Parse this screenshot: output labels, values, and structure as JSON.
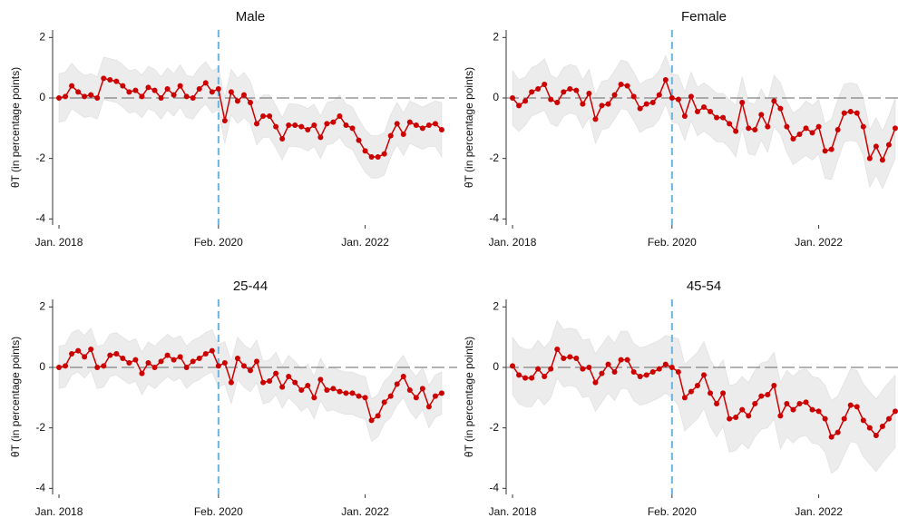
{
  "chart_data": [
    {
      "type": "line",
      "title": "Male",
      "ylabel": "θT (in percentage points)",
      "x": [
        "2018-01",
        "2018-02",
        "2018-03",
        "2018-04",
        "2018-05",
        "2018-06",
        "2018-07",
        "2018-08",
        "2018-09",
        "2018-10",
        "2018-11",
        "2018-12",
        "2019-01",
        "2019-02",
        "2019-03",
        "2019-04",
        "2019-05",
        "2019-06",
        "2019-07",
        "2019-08",
        "2019-09",
        "2019-10",
        "2019-11",
        "2019-12",
        "2020-01",
        "2020-02",
        "2020-03",
        "2020-04",
        "2020-05",
        "2020-06",
        "2020-07",
        "2020-08",
        "2020-09",
        "2020-10",
        "2020-11",
        "2020-12",
        "2021-01",
        "2021-02",
        "2021-03",
        "2021-04",
        "2021-05",
        "2021-06",
        "2021-07",
        "2021-08",
        "2021-09",
        "2021-10",
        "2021-11",
        "2021-12",
        "2022-01",
        "2022-02",
        "2022-03",
        "2022-04",
        "2022-05",
        "2022-06",
        "2022-07",
        "2022-08",
        "2022-09",
        "2022-10",
        "2022-11",
        "2022-12",
        "2023-01"
      ],
      "values": [
        0,
        0.05,
        0.4,
        0.2,
        0.05,
        0.1,
        0,
        0.65,
        0.6,
        0.55,
        0.4,
        0.2,
        0.25,
        0.05,
        0.35,
        0.25,
        0,
        0.3,
        0.1,
        0.4,
        0.05,
        0,
        0.3,
        0.5,
        0.2,
        0.3,
        -0.75,
        0.2,
        -0.1,
        0.1,
        -0.15,
        -0.85,
        -0.6,
        -0.6,
        -0.95,
        -1.35,
        -0.9,
        -0.9,
        -0.95,
        -1.05,
        -0.9,
        -1.3,
        -0.85,
        -0.8,
        -0.6,
        -0.9,
        -1.0,
        -1.4,
        -1.75,
        -1.95,
        -1.95,
        -1.85,
        -1.25,
        -0.85,
        -1.2,
        -0.8,
        -0.9,
        -1.0,
        -0.9,
        -0.85,
        -1.05
      ],
      "errors": [
        0.8,
        0.8,
        0.75,
        0.7,
        0.7,
        0.7,
        0.7,
        0.7,
        0.7,
        0.7,
        0.7,
        0.7,
        0.7,
        0.7,
        0.7,
        0.7,
        0.7,
        0.7,
        0.7,
        0.7,
        0.7,
        0.7,
        0.7,
        0.7,
        0.7,
        0.7,
        0.75,
        0.75,
        0.75,
        0.75,
        0.7,
        0.7,
        0.7,
        0.7,
        0.7,
        0.7,
        0.7,
        0.7,
        0.7,
        0.7,
        0.7,
        0.7,
        0.7,
        0.7,
        0.7,
        0.7,
        0.7,
        0.7,
        0.7,
        0.7,
        0.7,
        0.7,
        0.7,
        0.7,
        0.7,
        0.7,
        0.7,
        0.7,
        0.7,
        0.75,
        0.9
      ],
      "xlim": [
        "2017-12",
        "2023-02"
      ],
      "xticks": [
        {
          "value": "2018-01",
          "label": "Jan. 2018"
        },
        {
          "value": "2020-02",
          "label": "Feb. 2020"
        },
        {
          "value": "2022-01",
          "label": "Jan. 2022"
        }
      ],
      "ylim": [
        -4.2,
        2.25
      ],
      "yticks": [
        -4,
        -2,
        0,
        2
      ],
      "hline": 0,
      "vline": "2020-02",
      "color": "#cc0000",
      "band_color": "#ececec",
      "vline_color": "#6ab4e0"
    },
    {
      "type": "line",
      "title": "Female",
      "ylabel": "θT (in percentage points)",
      "x": [
        "2018-01",
        "2018-02",
        "2018-03",
        "2018-04",
        "2018-05",
        "2018-06",
        "2018-07",
        "2018-08",
        "2018-09",
        "2018-10",
        "2018-11",
        "2018-12",
        "2019-01",
        "2019-02",
        "2019-03",
        "2019-04",
        "2019-05",
        "2019-06",
        "2019-07",
        "2019-08",
        "2019-09",
        "2019-10",
        "2019-11",
        "2019-12",
        "2020-01",
        "2020-02",
        "2020-03",
        "2020-04",
        "2020-05",
        "2020-06",
        "2020-07",
        "2020-08",
        "2020-09",
        "2020-10",
        "2020-11",
        "2020-12",
        "2021-01",
        "2021-02",
        "2021-03",
        "2021-04",
        "2021-05",
        "2021-06",
        "2021-07",
        "2021-08",
        "2021-09",
        "2021-10",
        "2021-11",
        "2021-12",
        "2022-01",
        "2022-02",
        "2022-03",
        "2022-04",
        "2022-05",
        "2022-06",
        "2022-07",
        "2022-08",
        "2022-09",
        "2022-10",
        "2022-11",
        "2022-12",
        "2023-01"
      ],
      "values": [
        0,
        -0.25,
        -0.1,
        0.2,
        0.3,
        0.45,
        -0.05,
        -0.15,
        0.2,
        0.3,
        0.25,
        -0.2,
        0.15,
        -0.7,
        -0.25,
        -0.2,
        0.1,
        0.45,
        0.4,
        0.05,
        -0.35,
        -0.2,
        -0.15,
        0.1,
        0.6,
        0,
        -0.05,
        -0.6,
        0.05,
        -0.45,
        -0.3,
        -0.45,
        -0.65,
        -0.65,
        -0.85,
        -1.1,
        -0.15,
        -1.0,
        -1.05,
        -0.55,
        -0.95,
        -0.1,
        -0.35,
        -0.95,
        -1.35,
        -1.2,
        -1.0,
        -1.15,
        -0.95,
        -1.75,
        -1.7,
        -1.05,
        -0.5,
        -0.45,
        -0.5,
        -0.95,
        -2.0,
        -1.6,
        -2.05,
        -1.55,
        -1.0
      ],
      "errors": [
        0.9,
        0.85,
        0.8,
        0.8,
        0.8,
        0.85,
        0.8,
        0.8,
        0.8,
        0.8,
        0.8,
        0.8,
        0.8,
        0.8,
        0.8,
        0.8,
        0.8,
        0.8,
        0.8,
        0.8,
        0.8,
        0.8,
        0.8,
        0.8,
        0.8,
        0.8,
        0.8,
        0.8,
        0.8,
        0.8,
        0.8,
        0.8,
        0.8,
        0.8,
        0.8,
        0.85,
        0.85,
        0.85,
        0.85,
        0.85,
        0.85,
        0.85,
        0.85,
        0.85,
        0.85,
        0.85,
        0.9,
        0.9,
        0.9,
        0.9,
        1.0,
        1.0,
        0.95,
        0.95,
        0.95,
        0.95,
        0.95,
        0.95,
        0.95,
        0.95,
        1.0
      ],
      "xlim": [
        "2017-12",
        "2023-02"
      ],
      "xticks": [
        {
          "value": "2018-01",
          "label": "Jan. 2018"
        },
        {
          "value": "2020-02",
          "label": "Feb. 2020"
        },
        {
          "value": "2022-01",
          "label": "Jan. 2022"
        }
      ],
      "ylim": [
        -4.2,
        2.25
      ],
      "yticks": [
        -4,
        -2,
        0,
        2
      ],
      "hline": 0,
      "vline": "2020-02",
      "color": "#cc0000",
      "band_color": "#ececec",
      "vline_color": "#6ab4e0"
    },
    {
      "type": "line",
      "title": "25-44",
      "ylabel": "θT (in percentage points)",
      "x": [
        "2018-01",
        "2018-02",
        "2018-03",
        "2018-04",
        "2018-05",
        "2018-06",
        "2018-07",
        "2018-08",
        "2018-09",
        "2018-10",
        "2018-11",
        "2018-12",
        "2019-01",
        "2019-02",
        "2019-03",
        "2019-04",
        "2019-05",
        "2019-06",
        "2019-07",
        "2019-08",
        "2019-09",
        "2019-10",
        "2019-11",
        "2019-12",
        "2020-01",
        "2020-02",
        "2020-03",
        "2020-04",
        "2020-05",
        "2020-06",
        "2020-07",
        "2020-08",
        "2020-09",
        "2020-10",
        "2020-11",
        "2020-12",
        "2021-01",
        "2021-02",
        "2021-03",
        "2021-04",
        "2021-05",
        "2021-06",
        "2021-07",
        "2021-08",
        "2021-09",
        "2021-10",
        "2021-11",
        "2021-12",
        "2022-01",
        "2022-02",
        "2022-03",
        "2022-04",
        "2022-05",
        "2022-06",
        "2022-07",
        "2022-08",
        "2022-09",
        "2022-10",
        "2022-11",
        "2022-12",
        "2023-01"
      ],
      "values": [
        0,
        0.05,
        0.45,
        0.55,
        0.35,
        0.6,
        0,
        0.05,
        0.4,
        0.45,
        0.3,
        0.15,
        0.25,
        -0.2,
        0.15,
        0,
        0.2,
        0.4,
        0.25,
        0.35,
        0,
        0.2,
        0.3,
        0.45,
        0.55,
        0.05,
        0.15,
        -0.5,
        0.3,
        0.05,
        -0.1,
        0.2,
        -0.5,
        -0.45,
        -0.2,
        -0.65,
        -0.3,
        -0.5,
        -0.75,
        -0.6,
        -1.0,
        -0.4,
        -0.75,
        -0.7,
        -0.8,
        -0.85,
        -0.85,
        -0.95,
        -1.0,
        -1.75,
        -1.6,
        -1.15,
        -0.95,
        -0.55,
        -0.3,
        -0.75,
        -1.0,
        -0.7,
        -1.3,
        -0.95,
        -0.85
      ],
      "errors": [
        0.7,
        0.7,
        0.7,
        0.7,
        0.7,
        0.7,
        0.7,
        0.7,
        0.7,
        0.7,
        0.7,
        0.7,
        0.7,
        0.7,
        0.7,
        0.7,
        0.7,
        0.7,
        0.7,
        0.7,
        0.7,
        0.7,
        0.7,
        0.7,
        0.7,
        0.7,
        0.7,
        0.7,
        0.7,
        0.7,
        0.7,
        0.7,
        0.7,
        0.7,
        0.7,
        0.7,
        0.7,
        0.7,
        0.7,
        0.7,
        0.7,
        0.7,
        0.7,
        0.7,
        0.7,
        0.7,
        0.7,
        0.7,
        0.7,
        0.7,
        0.7,
        0.7,
        0.7,
        0.7,
        0.7,
        0.7,
        0.7,
        0.7,
        0.7,
        0.7,
        0.7
      ],
      "xlim": [
        "2017-12",
        "2023-02"
      ],
      "xticks": [
        {
          "value": "2018-01",
          "label": "Jan. 2018"
        },
        {
          "value": "2020-02",
          "label": "Feb. 2020"
        },
        {
          "value": "2022-01",
          "label": "Jan. 2022"
        }
      ],
      "ylim": [
        -4.2,
        2.25
      ],
      "yticks": [
        -4,
        -2,
        0,
        2
      ],
      "hline": 0,
      "vline": "2020-02",
      "color": "#cc0000",
      "band_color": "#ececec",
      "vline_color": "#6ab4e0"
    },
    {
      "type": "line",
      "title": "45-54",
      "ylabel": "θT (in percentage points)",
      "x": [
        "2018-01",
        "2018-02",
        "2018-03",
        "2018-04",
        "2018-05",
        "2018-06",
        "2018-07",
        "2018-08",
        "2018-09",
        "2018-10",
        "2018-11",
        "2018-12",
        "2019-01",
        "2019-02",
        "2019-03",
        "2019-04",
        "2019-05",
        "2019-06",
        "2019-07",
        "2019-08",
        "2019-09",
        "2019-10",
        "2019-11",
        "2019-12",
        "2020-01",
        "2020-02",
        "2020-03",
        "2020-04",
        "2020-05",
        "2020-06",
        "2020-07",
        "2020-08",
        "2020-09",
        "2020-10",
        "2020-11",
        "2020-12",
        "2021-01",
        "2021-02",
        "2021-03",
        "2021-04",
        "2021-05",
        "2021-06",
        "2021-07",
        "2021-08",
        "2021-09",
        "2021-10",
        "2021-11",
        "2021-12",
        "2022-01",
        "2022-02",
        "2022-03",
        "2022-04",
        "2022-05",
        "2022-06",
        "2022-07",
        "2022-08",
        "2022-09",
        "2022-10",
        "2022-11",
        "2022-12",
        "2023-01"
      ],
      "values": [
        0.05,
        -0.25,
        -0.35,
        -0.35,
        -0.05,
        -0.3,
        -0.05,
        0.6,
        0.3,
        0.35,
        0.3,
        -0.05,
        0,
        -0.5,
        -0.2,
        0.1,
        -0.15,
        0.25,
        0.25,
        -0.15,
        -0.3,
        -0.25,
        -0.15,
        -0.05,
        0.1,
        0,
        -0.15,
        -1.0,
        -0.8,
        -0.6,
        -0.25,
        -0.85,
        -1.2,
        -0.85,
        -1.7,
        -1.65,
        -1.4,
        -1.6,
        -1.2,
        -0.95,
        -0.9,
        -0.6,
        -1.6,
        -1.2,
        -1.4,
        -1.2,
        -1.15,
        -1.4,
        -1.45,
        -1.7,
        -2.3,
        -2.15,
        -1.7,
        -1.25,
        -1.3,
        -1.75,
        -2.0,
        -2.25,
        -1.95,
        -1.7,
        -1.45
      ],
      "errors": [
        0.95,
        0.95,
        0.95,
        0.95,
        0.95,
        0.95,
        0.95,
        0.95,
        0.95,
        0.95,
        0.95,
        0.95,
        0.95,
        0.95,
        0.95,
        0.95,
        0.95,
        0.95,
        0.95,
        0.95,
        0.95,
        0.95,
        0.95,
        0.95,
        0.95,
        1.0,
        1.1,
        1.1,
        1.1,
        1.1,
        1.1,
        1.1,
        1.1,
        1.1,
        1.1,
        1.1,
        1.1,
        1.1,
        1.1,
        1.1,
        1.1,
        1.1,
        1.1,
        1.1,
        1.1,
        1.1,
        1.1,
        1.1,
        1.1,
        1.1,
        1.2,
        1.2,
        1.2,
        1.2,
        1.2,
        1.2,
        1.2,
        1.2,
        1.2,
        1.2,
        1.2
      ],
      "xlim": [
        "2017-12",
        "2023-02"
      ],
      "xticks": [
        {
          "value": "2018-01",
          "label": "Jan. 2018"
        },
        {
          "value": "2020-02",
          "label": "Feb. 2020"
        },
        {
          "value": "2022-01",
          "label": "Jan. 2022"
        }
      ],
      "ylim": [
        -4.2,
        2.25
      ],
      "yticks": [
        -4,
        -2,
        0,
        2
      ],
      "hline": 0,
      "vline": "2020-02",
      "color": "#cc0000",
      "band_color": "#ececec",
      "vline_color": "#6ab4e0"
    }
  ]
}
